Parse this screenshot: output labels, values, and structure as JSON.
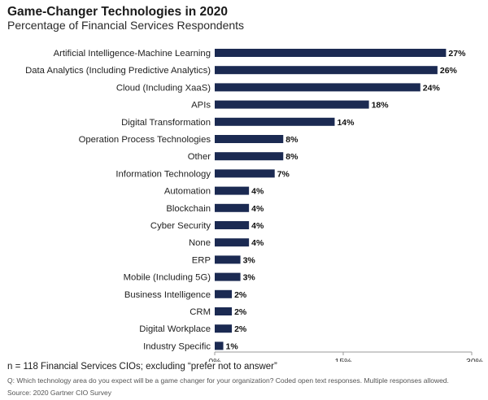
{
  "colors": {
    "bar": "#1b2a52",
    "axis": "#9a9a9a"
  },
  "chart_data": {
    "type": "bar",
    "orientation": "horizontal",
    "title": "Game-Changer Technologies in 2020",
    "subtitle": "Percentage of Financial Services Respondents",
    "categories": [
      "Artificial Intelligence-Machine Learning",
      "Data Analytics (Including Predictive Analytics)",
      "Cloud (Including XaaS)",
      "APIs",
      "Digital Transformation",
      "Operation Process Technologies",
      "Other",
      "Information Technology",
      "Automation",
      "Blockchain",
      "Cyber Security",
      "None",
      "ERP",
      "Mobile (Including 5G)",
      "Business Intelligence",
      "CRM",
      "Digital Workplace",
      "Industry Specific"
    ],
    "values": [
      27,
      26,
      24,
      18,
      14,
      8,
      8,
      7,
      4,
      4,
      4,
      4,
      3,
      3,
      2,
      2,
      2,
      1
    ],
    "value_labels": [
      "27%",
      "26%",
      "24%",
      "18%",
      "14%",
      "8%",
      "8%",
      "7%",
      "4%",
      "4%",
      "4%",
      "4%",
      "3%",
      "3%",
      "2%",
      "2%",
      "2%",
      "1%"
    ],
    "xlim": [
      0,
      30
    ],
    "xticks": [
      0,
      15,
      30
    ],
    "xtick_labels": [
      "0%",
      "15%",
      "30%"
    ],
    "grid": false,
    "legend": "none"
  },
  "footnotes": {
    "n_note": "n = 118 Financial Services CIOs; excluding “prefer not to answer”",
    "question": "Q: Which technology area do you expect will be a game changer for your organization? Coded open text responses. Multiple responses allowed.",
    "source": "Source: 2020 Gartner CIO Survey"
  }
}
